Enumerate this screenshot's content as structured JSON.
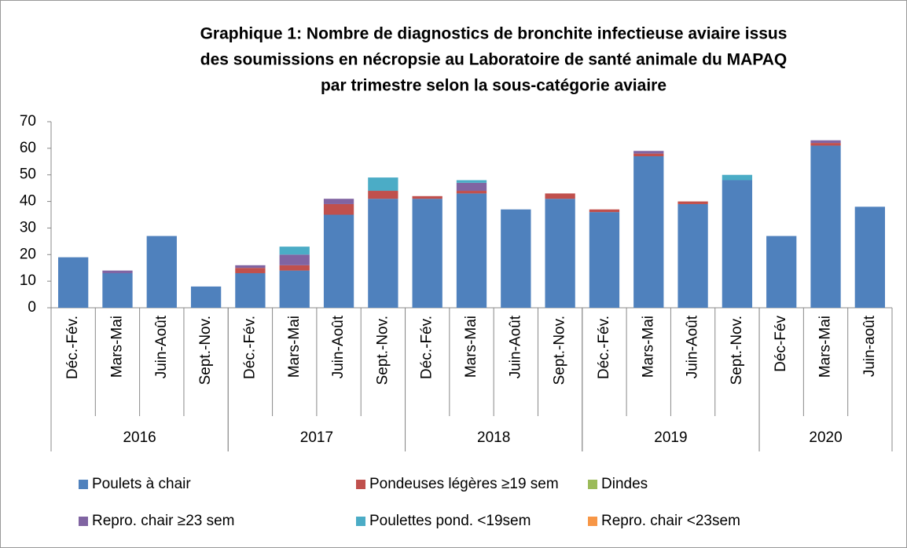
{
  "chart_data": {
    "type": "stacked-bar",
    "title": [
      "Graphique 1: Nombre de diagnostics de bronchite infectieuse aviaire issus",
      "des soumissions en nécropsie au Laboratoire de santé animale du MAPAQ",
      "par trimestre selon la sous-catégorie aviaire"
    ],
    "groups": [
      {
        "name": "2016",
        "categories": [
          "Déc.-Fév.",
          "Mars-Mai",
          "Juin-Août",
          "Sept.-Nov."
        ]
      },
      {
        "name": "2017",
        "categories": [
          "Déc.-Fév.",
          "Mars-Mai",
          "Juin-Août",
          "Sept.-Nov."
        ]
      },
      {
        "name": "2018",
        "categories": [
          "Déc.-Fév.",
          "Mars-Mai",
          "Juin-Août",
          "Sept.-Nov."
        ]
      },
      {
        "name": "2019",
        "categories": [
          "Déc.-Fév.",
          "Mars-Mai",
          "Juin-Août",
          "Sept.-Nov."
        ]
      },
      {
        "name": "2020",
        "categories": [
          "Déc-Fév",
          "Mars-Mai",
          "Juin-août"
        ]
      }
    ],
    "series": [
      {
        "name": "Poulets à chair",
        "color": "#4f81bd",
        "values": [
          19,
          13,
          27,
          8,
          13,
          14,
          35,
          41,
          41,
          43,
          37,
          41,
          36,
          57,
          39,
          48,
          27,
          61,
          38
        ]
      },
      {
        "name": "Pondeuses légères ≥19 sem",
        "color": "#c0504d",
        "values": [
          0,
          0,
          0,
          0,
          2,
          2,
          4,
          3,
          1,
          1,
          0,
          2,
          1,
          1,
          1,
          0,
          0,
          1,
          0
        ]
      },
      {
        "name": "Dindes",
        "color": "#9bbb59",
        "values": [
          0,
          0,
          0,
          0,
          0,
          0,
          0,
          0,
          0,
          0,
          0,
          0,
          0,
          0,
          0,
          0,
          0,
          0,
          0
        ]
      },
      {
        "name": "Repro. chair ≥23 sem",
        "color": "#8064a2",
        "values": [
          0,
          1,
          0,
          0,
          1,
          4,
          2,
          0,
          0,
          3,
          0,
          0,
          0,
          1,
          0,
          0,
          0,
          1,
          0
        ]
      },
      {
        "name": "Poulettes pond. <19sem",
        "color": "#4bacc6",
        "values": [
          0,
          0,
          0,
          0,
          0,
          3,
          0,
          5,
          0,
          1,
          0,
          0,
          0,
          0,
          0,
          2,
          0,
          0,
          0
        ]
      },
      {
        "name": "Repro. chair <23sem",
        "color": "#f79646",
        "values": [
          0,
          0,
          0,
          0,
          0,
          0,
          0,
          0,
          0,
          0,
          0,
          0,
          0,
          0,
          0,
          0,
          0,
          0,
          0
        ]
      }
    ],
    "ylim": [
      0,
      70
    ],
    "yticks": [
      0,
      10,
      20,
      30,
      40,
      50,
      60,
      70
    ],
    "grid": false
  }
}
